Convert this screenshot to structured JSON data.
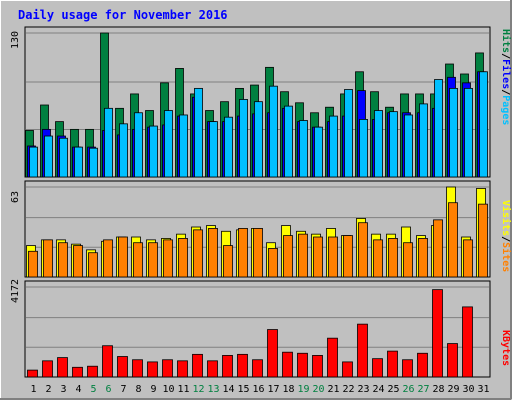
{
  "title": "Daily usage for November 2016",
  "colors": {
    "background": "#c0c0c0",
    "outer": "#c0c0c0",
    "title": "#0000ff",
    "hits": "#008040",
    "files": "#0000ff",
    "pages": "#00c0ff",
    "visits": "#ffff00",
    "sites": "#ff8000",
    "kbytes": "#ff0000",
    "weekend_day": "#008040",
    "weekday_day": "#000000"
  },
  "side_labels": {
    "top": {
      "pages": "Pages",
      "files": "Files",
      "hits": "Hits",
      "sep": "/"
    },
    "middle": {
      "sites": "Sites",
      "visits": "Visits",
      "sep": "/"
    },
    "bottom": {
      "kbytes": "KBytes"
    }
  },
  "chart_data": [
    {
      "type": "bar",
      "panel": "hits-files-pages",
      "ymax_label": "130",
      "ylim": [
        0,
        130
      ],
      "x": [
        1,
        2,
        3,
        4,
        5,
        6,
        7,
        8,
        9,
        10,
        11,
        12,
        13,
        14,
        15,
        16,
        17,
        18,
        19,
        20,
        21,
        22,
        23,
        24,
        25,
        26,
        27,
        28,
        29,
        30,
        31
      ],
      "series": [
        {
          "name": "Hits",
          "values": [
            42,
            65,
            50,
            43,
            43,
            130,
            62,
            75,
            60,
            85,
            98,
            75,
            60,
            68,
            80,
            83,
            99,
            77,
            67,
            58,
            63,
            75,
            95,
            77,
            63,
            75,
            75,
            75,
            102,
            93,
            112
          ]
        },
        {
          "name": "Files",
          "values": [
            28,
            43,
            37,
            27,
            27,
            42,
            38,
            43,
            45,
            47,
            55,
            72,
            50,
            50,
            55,
            57,
            58,
            62,
            50,
            45,
            50,
            55,
            78,
            52,
            58,
            58,
            58,
            62,
            90,
            85,
            95
          ]
        },
        {
          "name": "Pages",
          "values": [
            27,
            37,
            35,
            27,
            26,
            62,
            48,
            58,
            46,
            60,
            56,
            80,
            50,
            54,
            70,
            68,
            82,
            64,
            51,
            45,
            55,
            79,
            52,
            60,
            59,
            56,
            66,
            88,
            80,
            80,
            95
          ]
        }
      ]
    },
    {
      "type": "bar",
      "panel": "visits-sites",
      "ymax_label": "63",
      "ylim": [
        0,
        63
      ],
      "x": [
        1,
        2,
        3,
        4,
        5,
        6,
        7,
        8,
        9,
        10,
        11,
        12,
        13,
        14,
        15,
        16,
        17,
        18,
        19,
        20,
        21,
        22,
        23,
        24,
        25,
        26,
        27,
        28,
        29,
        30,
        31
      ],
      "series": [
        {
          "name": "Visits",
          "values": [
            22,
            26,
            26,
            23,
            19,
            25,
            28,
            28,
            26,
            27,
            30,
            35,
            36,
            32,
            33,
            34,
            24,
            36,
            32,
            30,
            34,
            29,
            41,
            30,
            30,
            35,
            29,
            36,
            63,
            28,
            62
          ]
        },
        {
          "name": "Sites",
          "values": [
            18,
            26,
            24,
            22,
            17,
            26,
            28,
            24,
            24,
            26,
            27,
            33,
            34,
            22,
            34,
            34,
            20,
            29,
            30,
            28,
            28,
            29,
            38,
            26,
            27,
            24,
            27,
            40,
            52,
            26,
            51
          ]
        }
      ]
    },
    {
      "type": "bar",
      "panel": "kbytes",
      "ymax_label": "4172",
      "ylim": [
        0,
        4172
      ],
      "x": [
        1,
        2,
        3,
        4,
        5,
        6,
        7,
        8,
        9,
        10,
        11,
        12,
        13,
        14,
        15,
        16,
        17,
        18,
        19,
        20,
        21,
        22,
        23,
        24,
        25,
        26,
        27,
        28,
        29,
        30,
        31
      ],
      "series": [
        {
          "name": "KBytes",
          "values": [
            320,
            750,
            900,
            450,
            500,
            1450,
            950,
            800,
            700,
            800,
            750,
            1050,
            750,
            1000,
            1050,
            800,
            2200,
            1150,
            1100,
            1000,
            1800,
            700,
            2450,
            850,
            1200,
            800,
            1100,
            4050,
            1550,
            3250,
            0
          ]
        }
      ]
    }
  ]
}
